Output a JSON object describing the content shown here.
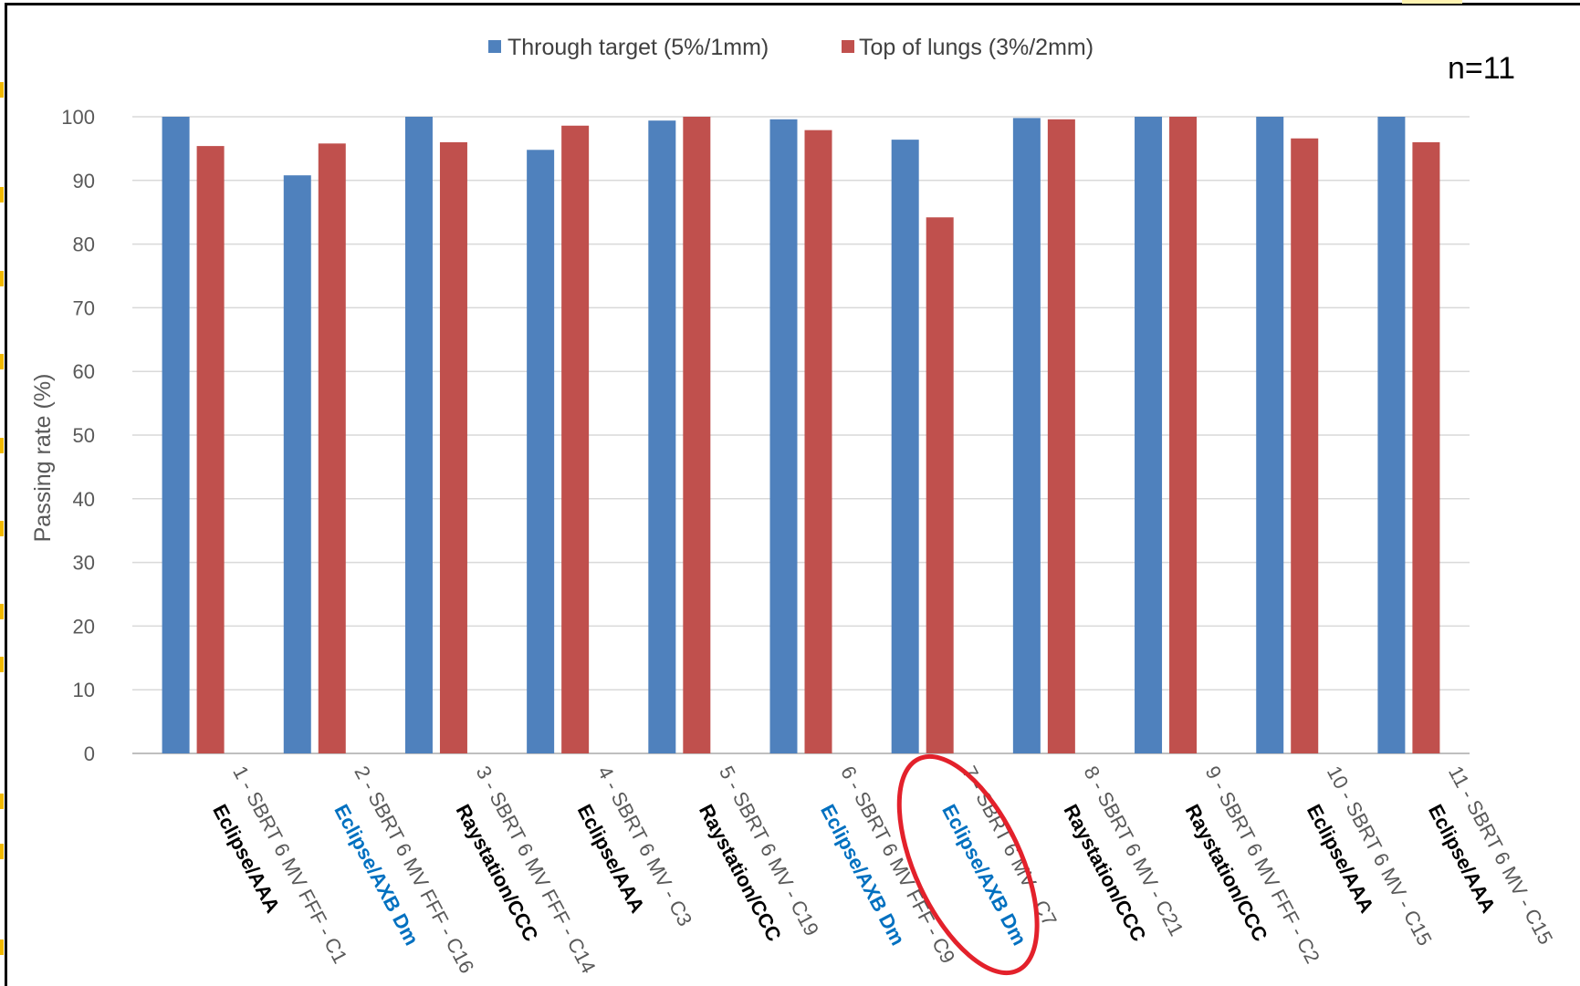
{
  "chart_data": {
    "type": "bar",
    "title": "",
    "ylabel": "Passing rate (%)",
    "xlabel": "",
    "ylim": [
      0,
      100
    ],
    "yticks": [
      0,
      10,
      20,
      30,
      40,
      50,
      60,
      70,
      80,
      90,
      100
    ],
    "grid": true,
    "legend_position": "top",
    "annotation": "n=11",
    "categories": [
      "1 - SBRT 6 MV FFF - C1",
      "2 - SBRT 6 MV FFF - C16",
      "3 - SBRT 6 MV FFF - C14",
      "4 - SBRT 6 MV - C3",
      "5 - SBRT 6 MV - C19",
      "6 - SBRT 6 MV FFF - C9",
      "7 - SBRT 6 MV - C7",
      "8 - SBRT 6 MV - C21",
      "9 - SBRT 6 MV FFF - C2",
      "10 - SBRT 6 MV - C15",
      "11 - SBRT 6 MV - C15"
    ],
    "algorithms": [
      {
        "label": "Eclipse/AAA",
        "color": "#000000"
      },
      {
        "label": "Eclipse/AXB Dm",
        "color": "#0070c0"
      },
      {
        "label": "Raystation/CCC",
        "color": "#000000"
      },
      {
        "label": "Eclipse/AAA",
        "color": "#000000"
      },
      {
        "label": "Raystation/CCC",
        "color": "#000000"
      },
      {
        "label": "Eclipse/AXB Dm",
        "color": "#0070c0"
      },
      {
        "label": "Eclipse/AXB Dm",
        "color": "#0070c0"
      },
      {
        "label": "Raystation/CCC",
        "color": "#000000"
      },
      {
        "label": "Raystation/CCC",
        "color": "#000000"
      },
      {
        "label": "Eclipse/AAA",
        "color": "#000000"
      },
      {
        "label": "Eclipse/AAA",
        "color": "#000000"
      }
    ],
    "highlighted_category_index": 6,
    "highlight_color": "#e3212b",
    "series": [
      {
        "name": "Through target (5%/1mm)",
        "color": "#4f81bd",
        "values": [
          100,
          90.8,
          100,
          94.8,
          99.4,
          99.6,
          96.4,
          99.8,
          100,
          100,
          100
        ]
      },
      {
        "name": "Top of lungs (3%/2mm)",
        "color": "#c0504d",
        "values": [
          95.4,
          95.8,
          96.0,
          98.6,
          100,
          97.9,
          84.2,
          99.6,
          100,
          96.6,
          96.0
        ]
      }
    ]
  }
}
